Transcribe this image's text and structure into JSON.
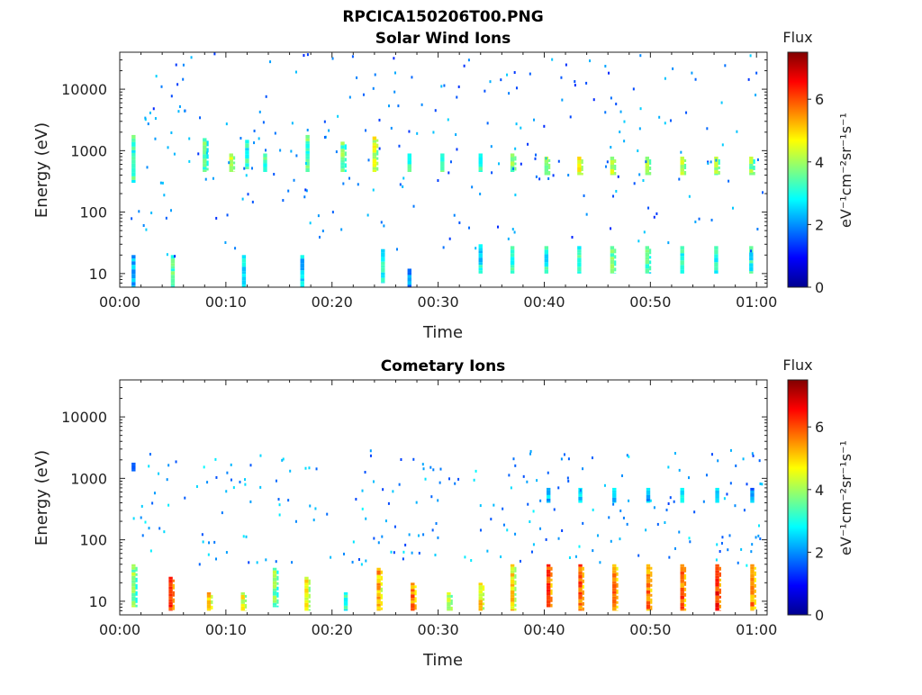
{
  "figure": {
    "title": "RPCICA150206T00.PNG"
  },
  "chart_data": [
    {
      "type": "heatmap",
      "title": "Solar Wind Ions",
      "xlabel": "Time",
      "ylabel": "Energy (eV)",
      "x_tick_labels": [
        "00:00",
        "00:10",
        "00:20",
        "00:30",
        "00:40",
        "00:50",
        "01:00"
      ],
      "x_ticks_min": [
        0,
        10,
        20,
        30,
        40,
        50,
        60
      ],
      "xlim_min": [
        0,
        61
      ],
      "y_scale": "log",
      "y_tick_values": [
        10,
        100,
        1000,
        10000
      ],
      "y_tick_labels": [
        "10",
        "100",
        "1000",
        "10000"
      ],
      "ylim": [
        6,
        40000
      ],
      "colorbar": {
        "title": "Flux",
        "label": "eV⁻¹cm⁻²sr⁻¹s⁻¹",
        "ticks": [
          0,
          2,
          4,
          6
        ],
        "range": [
          0,
          7.5
        ]
      },
      "bands": [
        {
          "t": 1.3,
          "e_low": 300,
          "e_high": 1800,
          "v": 3.2
        },
        {
          "t": 1.3,
          "e_low": 6,
          "e_high": 20,
          "v": 2.4
        },
        {
          "t": 5.0,
          "e_low": 6,
          "e_high": 20,
          "v": 3.4
        },
        {
          "t": 8.0,
          "e_low": 450,
          "e_high": 1600,
          "v": 3.6
        },
        {
          "t": 10.5,
          "e_low": 450,
          "e_high": 900,
          "v": 4.2
        },
        {
          "t": 12.0,
          "e_low": 500,
          "e_high": 1500,
          "v": 3.0
        },
        {
          "t": 11.7,
          "e_low": 6,
          "e_high": 20,
          "v": 2.6
        },
        {
          "t": 13.7,
          "e_low": 450,
          "e_high": 900,
          "v": 3.2
        },
        {
          "t": 17.7,
          "e_low": 450,
          "e_high": 1800,
          "v": 3.4
        },
        {
          "t": 17.2,
          "e_low": 6,
          "e_high": 20,
          "v": 2.6
        },
        {
          "t": 21.0,
          "e_low": 450,
          "e_high": 1400,
          "v": 3.6
        },
        {
          "t": 24.0,
          "e_low": 450,
          "e_high": 1700,
          "v": 4.4
        },
        {
          "t": 24.8,
          "e_low": 7,
          "e_high": 25,
          "v": 3.0
        },
        {
          "t": 27.3,
          "e_low": 450,
          "e_high": 900,
          "v": 3.3
        },
        {
          "t": 27.3,
          "e_low": 6,
          "e_high": 12,
          "v": 2.0
        },
        {
          "t": 30.4,
          "e_low": 450,
          "e_high": 900,
          "v": 3.3
        },
        {
          "t": 34.0,
          "e_low": 450,
          "e_high": 900,
          "v": 3.0
        },
        {
          "t": 34.0,
          "e_low": 10,
          "e_high": 30,
          "v": 2.8
        },
        {
          "t": 37.0,
          "e_low": 450,
          "e_high": 900,
          "v": 3.8
        },
        {
          "t": 37.0,
          "e_low": 10,
          "e_high": 28,
          "v": 3.2
        },
        {
          "t": 40.2,
          "e_low": 400,
          "e_high": 800,
          "v": 4.0
        },
        {
          "t": 40.2,
          "e_low": 10,
          "e_high": 28,
          "v": 3.0
        },
        {
          "t": 43.3,
          "e_low": 400,
          "e_high": 800,
          "v": 4.4
        },
        {
          "t": 43.3,
          "e_low": 10,
          "e_high": 28,
          "v": 3.2
        },
        {
          "t": 46.4,
          "e_low": 400,
          "e_high": 800,
          "v": 4.2
        },
        {
          "t": 46.4,
          "e_low": 10,
          "e_high": 28,
          "v": 3.8
        },
        {
          "t": 49.7,
          "e_low": 400,
          "e_high": 800,
          "v": 4.0
        },
        {
          "t": 49.7,
          "e_low": 10,
          "e_high": 28,
          "v": 3.6
        },
        {
          "t": 53.0,
          "e_low": 400,
          "e_high": 800,
          "v": 4.2
        },
        {
          "t": 53.0,
          "e_low": 10,
          "e_high": 28,
          "v": 3.2
        },
        {
          "t": 56.2,
          "e_low": 400,
          "e_high": 800,
          "v": 4.0
        },
        {
          "t": 56.2,
          "e_low": 10,
          "e_high": 28,
          "v": 3.0
        },
        {
          "t": 59.5,
          "e_low": 400,
          "e_high": 800,
          "v": 3.8
        },
        {
          "t": 59.5,
          "e_low": 10,
          "e_high": 28,
          "v": 3.0
        }
      ],
      "noise": {
        "cells": 260,
        "seed": 11,
        "e_low": 20,
        "e_high": 40000,
        "v_range": [
          1.2,
          2.5
        ]
      }
    },
    {
      "type": "heatmap",
      "title": "Cometary Ions",
      "xlabel": "Time",
      "ylabel": "Energy (eV)",
      "x_tick_labels": [
        "00:00",
        "00:10",
        "00:20",
        "00:30",
        "00:40",
        "00:50",
        "01:00"
      ],
      "x_ticks_min": [
        0,
        10,
        20,
        30,
        40,
        50,
        60
      ],
      "xlim_min": [
        0,
        61
      ],
      "y_scale": "log",
      "y_tick_values": [
        10,
        100,
        1000,
        10000
      ],
      "y_tick_labels": [
        "10",
        "100",
        "1000",
        "10000"
      ],
      "ylim": [
        6,
        40000
      ],
      "colorbar": {
        "title": "Flux",
        "label": "eV⁻¹cm⁻²sr⁻¹s⁻¹",
        "ticks": [
          0,
          2,
          4,
          6
        ],
        "range": [
          0,
          7.5
        ]
      },
      "bands": [
        {
          "t": 1.3,
          "e_low": 8,
          "e_high": 40,
          "v": 3.8
        },
        {
          "t": 1.3,
          "e_low": 1300,
          "e_high": 1800,
          "v": 1.3
        },
        {
          "t": 4.8,
          "e_low": 7,
          "e_high": 25,
          "v": 6.0
        },
        {
          "t": 8.4,
          "e_low": 7,
          "e_high": 14,
          "v": 5.0
        },
        {
          "t": 11.6,
          "e_low": 7,
          "e_high": 14,
          "v": 4.6
        },
        {
          "t": 14.6,
          "e_low": 8,
          "e_high": 35,
          "v": 3.8
        },
        {
          "t": 17.6,
          "e_low": 7,
          "e_high": 25,
          "v": 4.6
        },
        {
          "t": 21.3,
          "e_low": 7,
          "e_high": 14,
          "v": 3.0
        },
        {
          "t": 24.4,
          "e_low": 7,
          "e_high": 35,
          "v": 5.2
        },
        {
          "t": 27.6,
          "e_low": 7,
          "e_high": 20,
          "v": 5.6
        },
        {
          "t": 31.0,
          "e_low": 7,
          "e_high": 14,
          "v": 4.4
        },
        {
          "t": 34.0,
          "e_low": 7,
          "e_high": 20,
          "v": 4.8
        },
        {
          "t": 37.0,
          "e_low": 7,
          "e_high": 40,
          "v": 4.8
        },
        {
          "t": 40.4,
          "e_low": 8,
          "e_high": 40,
          "v": 6.0
        },
        {
          "t": 43.4,
          "e_low": 7,
          "e_high": 40,
          "v": 5.8
        },
        {
          "t": 46.6,
          "e_low": 7,
          "e_high": 40,
          "v": 5.6
        },
        {
          "t": 49.8,
          "e_low": 7,
          "e_high": 40,
          "v": 5.6
        },
        {
          "t": 53.0,
          "e_low": 7,
          "e_high": 40,
          "v": 5.8
        },
        {
          "t": 56.3,
          "e_low": 7,
          "e_high": 40,
          "v": 6.2
        },
        {
          "t": 59.6,
          "e_low": 7,
          "e_high": 40,
          "v": 5.6
        },
        {
          "t": 40.4,
          "e_low": 400,
          "e_high": 700,
          "v": 2.2
        },
        {
          "t": 43.4,
          "e_low": 400,
          "e_high": 700,
          "v": 2.6
        },
        {
          "t": 46.6,
          "e_low": 400,
          "e_high": 700,
          "v": 2.6
        },
        {
          "t": 49.8,
          "e_low": 400,
          "e_high": 700,
          "v": 2.4
        },
        {
          "t": 53.0,
          "e_low": 400,
          "e_high": 700,
          "v": 2.4
        },
        {
          "t": 56.3,
          "e_low": 400,
          "e_high": 700,
          "v": 2.2
        },
        {
          "t": 59.6,
          "e_low": 400,
          "e_high": 700,
          "v": 2.0
        }
      ],
      "noise": {
        "cells": 240,
        "seed": 7,
        "e_low": 40,
        "e_high": 3000,
        "v_range": [
          1.4,
          2.8
        ]
      }
    }
  ]
}
